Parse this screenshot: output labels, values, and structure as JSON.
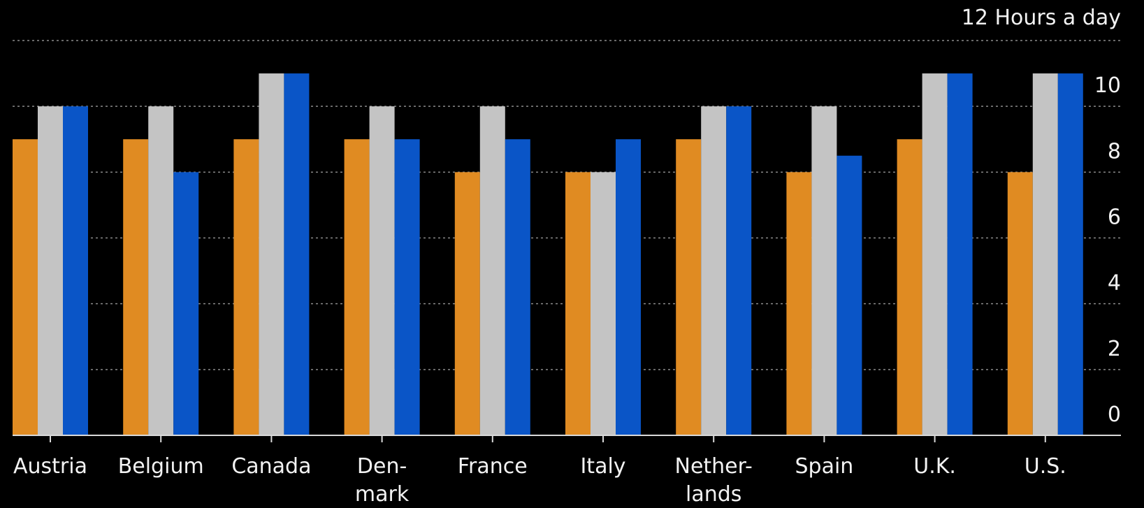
{
  "chart_data": {
    "type": "bar",
    "title": "",
    "xlabel": "",
    "ylabel": "",
    "ylim": [
      0,
      12
    ],
    "y_ticks": [
      0,
      2,
      4,
      6,
      8,
      10
    ],
    "y_axis_side": "right",
    "top_label": "12 Hours a day",
    "grid": true,
    "categories": [
      "Austria",
      "Belgium",
      "Canada",
      "Den-\nmark",
      "France",
      "Italy",
      "Nether-\nlands",
      "Spain",
      "U.K.",
      "U.S."
    ],
    "series": [
      {
        "color": "#e08b22",
        "values": [
          9,
          9,
          9,
          9,
          8,
          8,
          9,
          8,
          9,
          8
        ]
      },
      {
        "color": "#c4c4c4",
        "values": [
          10,
          10,
          11,
          10,
          10,
          8,
          10,
          10,
          11,
          11
        ]
      },
      {
        "color": "#0a55c7",
        "values": [
          10,
          8,
          11,
          9,
          9,
          9,
          10,
          8.5,
          11,
          11
        ]
      }
    ]
  },
  "colors": {
    "background": "#000000",
    "text": "#f2f2f2",
    "grid": "#8a8a8a",
    "axis": "#d9d9d9"
  }
}
